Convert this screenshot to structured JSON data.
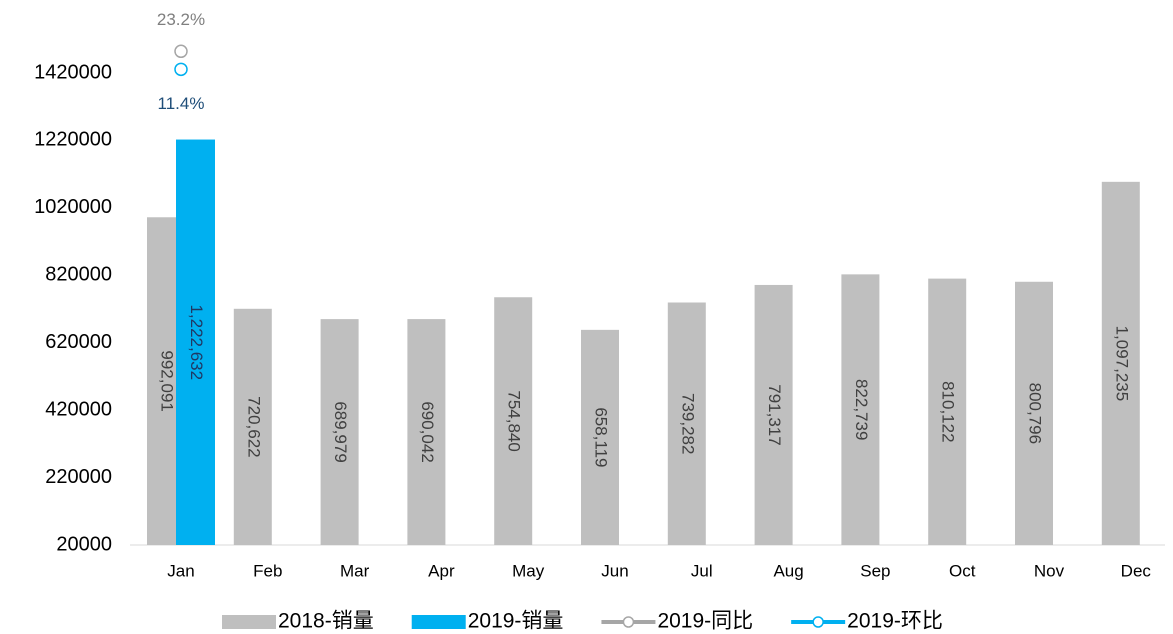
{
  "chart_data": {
    "type": "bar",
    "categories": [
      "Jan",
      "Feb",
      "Mar",
      "Apr",
      "May",
      "Jun",
      "Jul",
      "Aug",
      "Sep",
      "Oct",
      "Nov",
      "Dec"
    ],
    "series": [
      {
        "name": "2018-销量",
        "color": "#bfbfbf",
        "label_color": "#404040",
        "values": [
          992091,
          720622,
          689979,
          690042,
          754840,
          658119,
          739282,
          791317,
          822739,
          810122,
          800796,
          1097235
        ],
        "value_labels": [
          "992,091",
          "720,622",
          "689,979",
          "690,042",
          "754,840",
          "658,119",
          "739,282",
          "791,317",
          "822,739",
          "810,122",
          "800,796",
          "1,097,235"
        ]
      },
      {
        "name": "2019-销量",
        "color": "#00b0f0",
        "label_color": "#1f3864",
        "values": [
          1222632,
          null,
          null,
          null,
          null,
          null,
          null,
          null,
          null,
          null,
          null,
          null
        ],
        "value_labels": [
          "1,222,632",
          null,
          null,
          null,
          null,
          null,
          null,
          null,
          null,
          null,
          null,
          null
        ]
      },
      {
        "name": "2019-同比",
        "type": "line",
        "axis": "y2",
        "color": "#a6a6a6",
        "label_color": "#7f7f7f",
        "label_pos": "above",
        "values": [
          23.2,
          null,
          null,
          null,
          null,
          null,
          null,
          null,
          null,
          null,
          null,
          null
        ],
        "value_labels": [
          "23.2%",
          null,
          null,
          null,
          null,
          null,
          null,
          null,
          null,
          null,
          null,
          null
        ]
      },
      {
        "name": "2019-环比",
        "type": "line",
        "axis": "y2",
        "color": "#00b0f0",
        "label_color": "#1f4e79",
        "label_pos": "below",
        "values": [
          11.4,
          null,
          null,
          null,
          null,
          null,
          null,
          null,
          null,
          null,
          null,
          null
        ],
        "value_labels": [
          "11.4%",
          null,
          null,
          null,
          null,
          null,
          null,
          null,
          null,
          null,
          null,
          null
        ]
      }
    ],
    "ylim": [
      20000,
      1420000
    ],
    "yticks": [
      20000,
      220000,
      420000,
      620000,
      820000,
      1020000,
      1220000,
      1420000
    ],
    "y2lim": [
      -300,
      9
    ],
    "grid": false,
    "legend": "bottom"
  }
}
